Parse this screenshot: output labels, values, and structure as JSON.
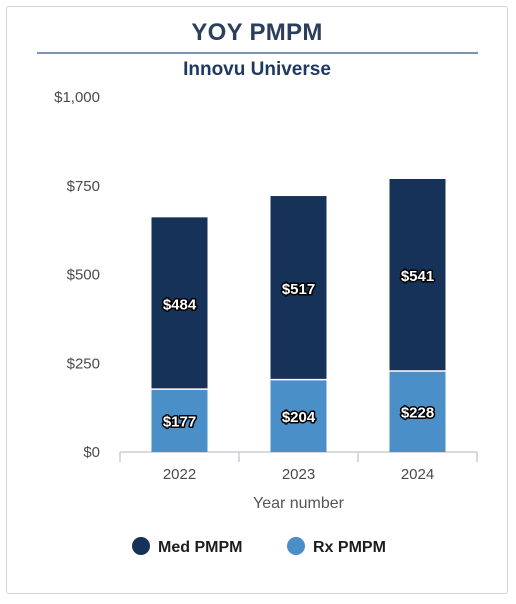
{
  "chart_data": {
    "type": "bar",
    "stacked": true,
    "title": "YOY PMPM",
    "subtitle": "Innovu Universe",
    "xlabel": "Year number",
    "ylabel": "",
    "categories": [
      "2022",
      "2023",
      "2024"
    ],
    "ylim": [
      0,
      1000
    ],
    "yticks": [
      0,
      250,
      500,
      750,
      1000
    ],
    "ytick_labels": [
      "$0",
      "$250",
      "$500",
      "$750",
      "$1,000"
    ],
    "series": [
      {
        "name": "Rx PMPM",
        "values": [
          177,
          204,
          228
        ],
        "labels": [
          "$177",
          "$204",
          "$228"
        ],
        "color": "#4a8fc8"
      },
      {
        "name": "Med PMPM",
        "values": [
          484,
          517,
          541
        ],
        "labels": [
          "$484",
          "$517",
          "$541"
        ],
        "color": "#163259"
      }
    ],
    "legend": {
      "placement": "bottom",
      "order": [
        "Med PMPM",
        "Rx PMPM"
      ]
    },
    "grid": false
  }
}
